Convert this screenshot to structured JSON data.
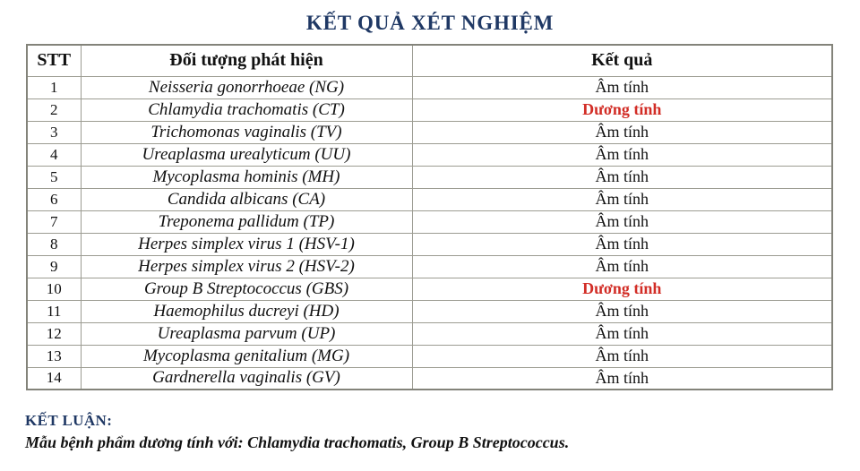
{
  "title": "KẾT QUẢ XÉT NGHIỆM",
  "colors": {
    "title_navy": "#1f3864",
    "positive_red": "#d22d26",
    "negative_black": "#111111",
    "table_border": "#9c9c92"
  },
  "table": {
    "headers": [
      "STT",
      "Đối tượng phát hiện",
      "Kết quả"
    ],
    "rows": [
      {
        "stt": "1",
        "target": "Neisseria gonorrhoeae (NG)",
        "result": "Âm tính",
        "positive": false
      },
      {
        "stt": "2",
        "target": "Chlamydia trachomatis (CT)",
        "result": "Dương tính",
        "positive": true
      },
      {
        "stt": "3",
        "target": "Trichomonas vaginalis (TV)",
        "result": "Âm tính",
        "positive": false
      },
      {
        "stt": "4",
        "target": "Ureaplasma urealyticum (UU)",
        "result": "Âm tính",
        "positive": false
      },
      {
        "stt": "5",
        "target": "Mycoplasma hominis (MH)",
        "result": "Âm tính",
        "positive": false
      },
      {
        "stt": "6",
        "target": "Candida albicans (CA)",
        "result": "Âm tính",
        "positive": false
      },
      {
        "stt": "7",
        "target": "Treponema pallidum (TP)",
        "result": "Âm tính",
        "positive": false
      },
      {
        "stt": "8",
        "target": "Herpes simplex virus 1 (HSV-1)",
        "result": "Âm tính",
        "positive": false
      },
      {
        "stt": "9",
        "target": "Herpes simplex virus 2 (HSV-2)",
        "result": "Âm tính",
        "positive": false
      },
      {
        "stt": "10",
        "target": "Group B Streptococcus (GBS)",
        "result": "Dương tính",
        "positive": true
      },
      {
        "stt": "11",
        "target": "Haemophilus ducreyi (HD)",
        "result": "Âm tính",
        "positive": false
      },
      {
        "stt": "12",
        "target": "Ureaplasma parvum (UP)",
        "result": "Âm tính",
        "positive": false
      },
      {
        "stt": "13",
        "target": "Mycoplasma genitalium (MG)",
        "result": "Âm tính",
        "positive": false
      },
      {
        "stt": "14",
        "target": "Gardnerella vaginalis (GV)",
        "result": "Âm tính",
        "positive": false
      }
    ]
  },
  "conclusion": {
    "label": "KẾT LUẬN:",
    "text": "Mẫu bệnh phẩm dương tính với: Chlamydia trachomatis, Group B Streptococcus."
  }
}
